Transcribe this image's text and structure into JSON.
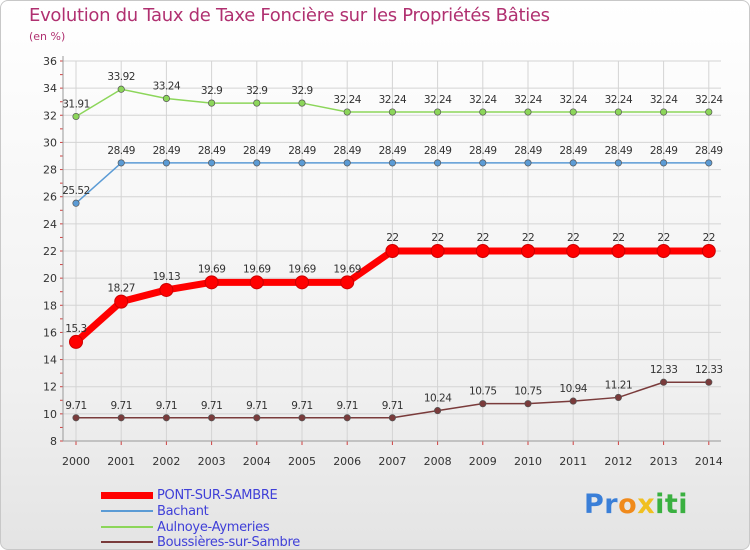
{
  "chart_data": {
    "type": "line",
    "title": "Evolution du Taux de Taxe Foncière sur les Propriétés Bâties",
    "ylabel": "(en %)",
    "xlabel": "",
    "ylim": [
      8,
      36
    ],
    "yticks": [
      8,
      10,
      12,
      14,
      16,
      18,
      20,
      22,
      24,
      26,
      28,
      30,
      32,
      34,
      36
    ],
    "grid": true,
    "legend_position": "bottom-left",
    "categories": [
      "2000",
      "2001",
      "2002",
      "2003",
      "2004",
      "2005",
      "2006",
      "2007",
      "2008",
      "2009",
      "2010",
      "2011",
      "2012",
      "2013",
      "2014"
    ],
    "series": [
      {
        "name": "PONT-SUR-SAMBRE",
        "color": "#ff0000",
        "values": [
          15.3,
          18.27,
          19.13,
          19.69,
          19.69,
          19.69,
          19.69,
          22,
          22,
          22,
          22,
          22,
          22,
          22,
          22
        ],
        "labels": [
          "15.3",
          "18.27",
          "19.13",
          "19.69",
          "19.69",
          "19.69",
          "19.69",
          "22",
          "22",
          "22",
          "22",
          "22",
          "22",
          "22",
          "22"
        ]
      },
      {
        "name": "Bachant",
        "color": "#5b9bd5",
        "values": [
          25.52,
          28.49,
          28.49,
          28.49,
          28.49,
          28.49,
          28.49,
          28.49,
          28.49,
          28.49,
          28.49,
          28.49,
          28.49,
          28.49,
          28.49
        ],
        "labels": [
          "25.52",
          "28.49",
          "28.49",
          "28.49",
          "28.49",
          "28.49",
          "28.49",
          "28.49",
          "28.49",
          "28.49",
          "28.49",
          "28.49",
          "28.49",
          "28.49",
          "28.49"
        ]
      },
      {
        "name": "Aulnoye-Aymeries",
        "color": "#8cd65a",
        "values": [
          31.91,
          33.92,
          33.24,
          32.9,
          32.9,
          32.9,
          32.24,
          32.24,
          32.24,
          32.24,
          32.24,
          32.24,
          32.24,
          32.24,
          32.24
        ],
        "labels": [
          "31.91",
          "33.92",
          "33.24",
          "32.9",
          "32.9",
          "32.9",
          "32.24",
          "32.24",
          "32.24",
          "32.24",
          "32.24",
          "32.24",
          "32.24",
          "32.24",
          "32.24"
        ]
      },
      {
        "name": "Boussières-sur-Sambre",
        "color": "#7a3b3b",
        "values": [
          9.71,
          9.71,
          9.71,
          9.71,
          9.71,
          9.71,
          9.71,
          9.71,
          10.24,
          10.75,
          10.75,
          10.94,
          11.21,
          12.33,
          12.33
        ],
        "labels": [
          "9.71",
          "9.71",
          "9.71",
          "9.71",
          "9.71",
          "9.71",
          "9.71",
          "9.71",
          "10.24",
          "10.75",
          "10.75",
          "10.94",
          "11.21",
          "12.33",
          "12.33"
        ]
      }
    ]
  },
  "logo": {
    "letters": [
      "P",
      "r",
      "o",
      "x",
      "i",
      "t",
      "i"
    ],
    "colors": [
      "#3a7fd8",
      "#3a7fd8",
      "#f08a1c",
      "#f0c020",
      "#3ab040",
      "#3ab040",
      "#3ab040"
    ]
  }
}
